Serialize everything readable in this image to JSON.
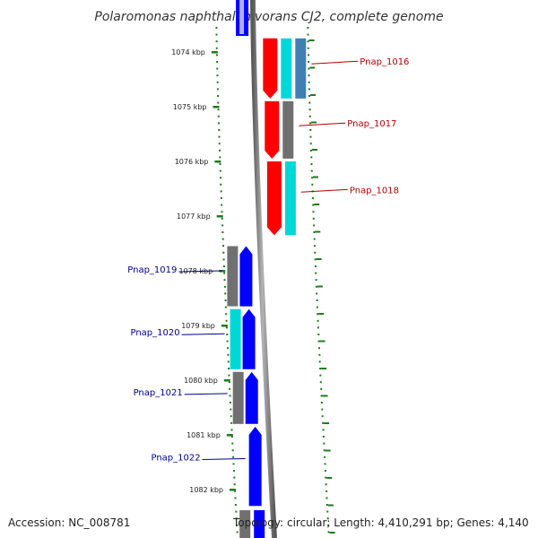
{
  "title": "Polaromonas naphthalenivorans CJ2, complete genome",
  "footer": {
    "accession": "Accession: NC_008781",
    "topology": "Topology: circular; Length: 4,410,291 bp; Genes: 4,140"
  },
  "colors": {
    "backbone": "#8c8c8c",
    "tick": "#1e7a1e",
    "forward_label": "#b00000",
    "reverse_label": "#00008b",
    "red": "#ff0000",
    "blue": "#0000ff",
    "cyan": "#00d8d8",
    "gray": "#707070",
    "steelblue": "#3f7fb4"
  },
  "scale_ticks": [
    {
      "kbp": 1074,
      "label": "1074 kbp"
    },
    {
      "kbp": 1075,
      "label": "1075 kbp"
    },
    {
      "kbp": 1076,
      "label": "1076 kbp"
    },
    {
      "kbp": 1077,
      "label": "1077 kbp"
    },
    {
      "kbp": 1078,
      "label": "1078 kbp"
    },
    {
      "kbp": 1079,
      "label": "1079 kbp"
    },
    {
      "kbp": 1080,
      "label": "1080 kbp"
    },
    {
      "kbp": 1081,
      "label": "1081 kbp"
    },
    {
      "kbp": 1082,
      "label": "1082 kbp"
    }
  ],
  "forward_genes": [
    {
      "name": "Pnap_1016",
      "start_kbp": 1073.75,
      "end_kbp": 1074.85,
      "tracks": [
        "red",
        "cyan",
        "steelblue"
      ]
    },
    {
      "name": "Pnap_1017",
      "start_kbp": 1074.9,
      "end_kbp": 1075.95,
      "tracks": [
        "red",
        "gray"
      ]
    },
    {
      "name": "Pnap_1018",
      "start_kbp": 1076.0,
      "end_kbp": 1077.35,
      "tracks": [
        "red",
        "cyan"
      ]
    }
  ],
  "reverse_genes": [
    {
      "name": "Pnap_1019",
      "start_kbp": 1077.55,
      "end_kbp": 1078.65,
      "tracks": [
        "gray",
        "blue"
      ]
    },
    {
      "name": "Pnap_1020",
      "start_kbp": 1078.7,
      "end_kbp": 1079.8,
      "tracks": [
        "cyan",
        "blue"
      ]
    },
    {
      "name": "Pnap_1021",
      "start_kbp": 1079.85,
      "end_kbp": 1080.8,
      "tracks": [
        "gray",
        "blue"
      ]
    },
    {
      "name": "Pnap_1022",
      "start_kbp": 1080.85,
      "end_kbp": 1082.3,
      "tracks": [
        "blue"
      ]
    }
  ],
  "partial_edge_features": {
    "top": {
      "tracks": [
        "blue"
      ]
    },
    "bottom": {
      "tracks": [
        "gray",
        "blue"
      ]
    }
  }
}
